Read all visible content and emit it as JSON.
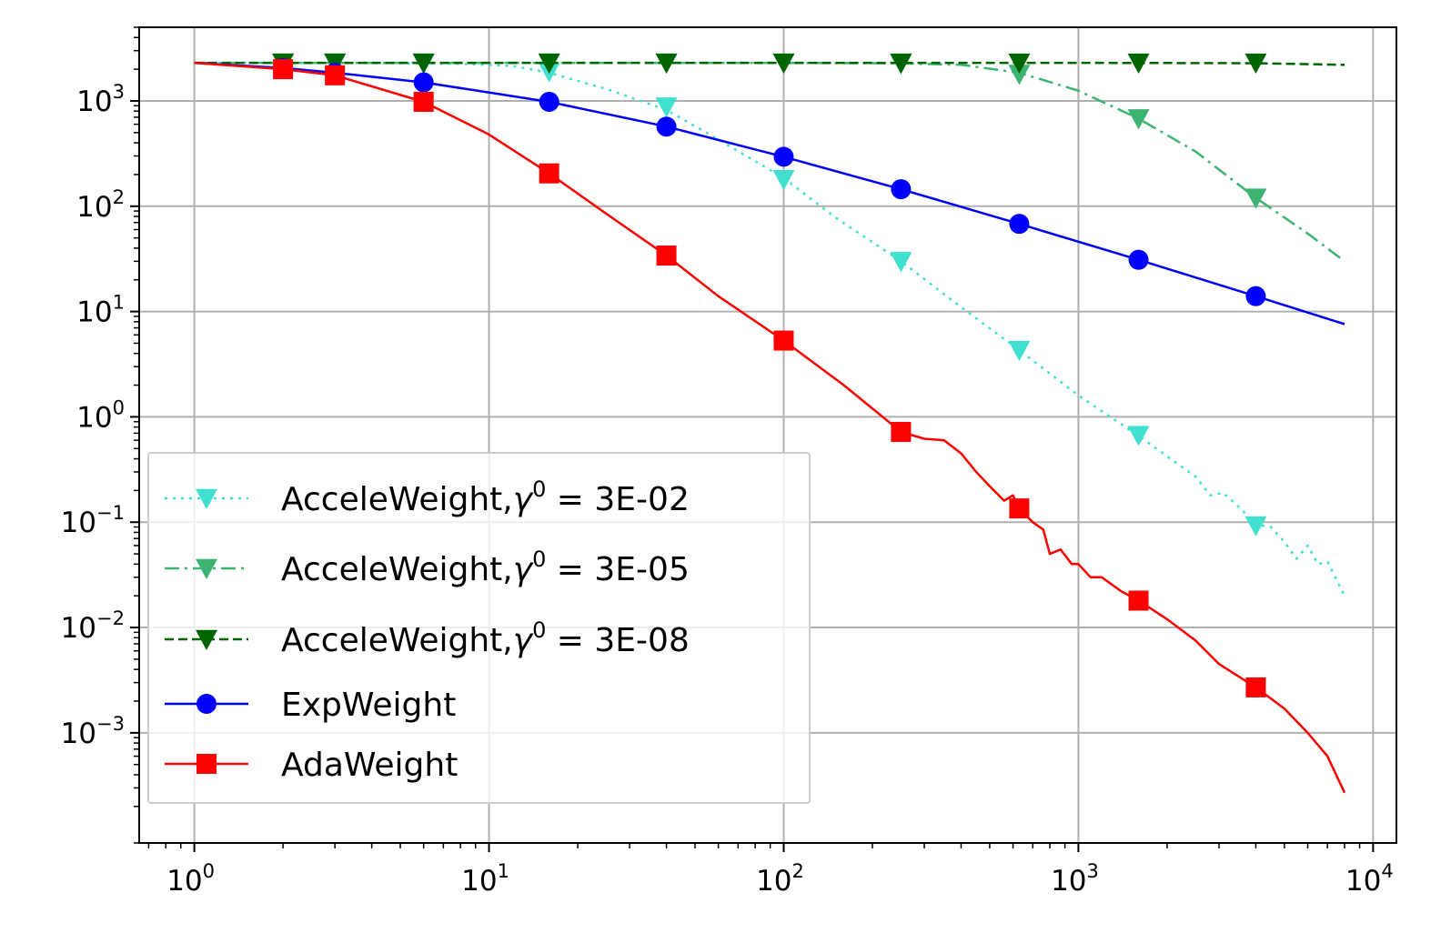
{
  "chart_data": {
    "type": "line",
    "xscale": "log",
    "yscale": "log",
    "xlim": [
      0.65,
      12000
    ],
    "ylim": [
      9e-05,
      5000
    ],
    "grid": true,
    "legend_position": "lower-left",
    "x_tick_labels": [
      {
        "value": 1,
        "base": "10",
        "exp": "0"
      },
      {
        "value": 10,
        "base": "10",
        "exp": "1"
      },
      {
        "value": 100,
        "base": "10",
        "exp": "2"
      },
      {
        "value": 1000,
        "base": "10",
        "exp": "3"
      },
      {
        "value": 10000,
        "base": "10",
        "exp": "4"
      }
    ],
    "y_tick_labels": [
      {
        "value": 1000,
        "base": "10",
        "exp": "3"
      },
      {
        "value": 100,
        "base": "10",
        "exp": "2"
      },
      {
        "value": 10,
        "base": "10",
        "exp": "1"
      },
      {
        "value": 1,
        "base": "10",
        "exp": "0"
      },
      {
        "value": 0.1,
        "base": "10",
        "exp": "−1"
      },
      {
        "value": 0.01,
        "base": "10",
        "exp": "−2"
      },
      {
        "value": 0.001,
        "base": "10",
        "exp": "−3"
      }
    ],
    "series": [
      {
        "name": "AcceleWeight, γ0 = 3E-02",
        "legend_prefix": "AcceleWeight,",
        "legend_gamma": "γ",
        "legend_sup": "0",
        "legend_suffix": " = 3E-02",
        "color": "#40e0d0",
        "dash": "3,6",
        "marker": "triangle-down",
        "line": [
          [
            1,
            2300
          ],
          [
            4,
            2290
          ],
          [
            8,
            2250
          ],
          [
            12,
            2150
          ],
          [
            16,
            1850
          ],
          [
            25,
            1300
          ],
          [
            40,
            820
          ],
          [
            60,
            430
          ],
          [
            100,
            185
          ],
          [
            150,
            78
          ],
          [
            250,
            30
          ],
          [
            400,
            11
          ],
          [
            630,
            4.3
          ],
          [
            1000,
            1.6
          ],
          [
            1600,
            0.66
          ],
          [
            2500,
            0.27
          ],
          [
            2800,
            0.18
          ],
          [
            3100,
            0.19
          ],
          [
            3500,
            0.14
          ],
          [
            4000,
            0.095
          ],
          [
            4500,
            0.09
          ],
          [
            5000,
            0.065
          ],
          [
            5500,
            0.045
          ],
          [
            6000,
            0.06
          ],
          [
            6500,
            0.04
          ],
          [
            7000,
            0.042
          ],
          [
            8000,
            0.02
          ]
        ],
        "markers": [
          [
            2,
            2300
          ],
          [
            3,
            2300
          ],
          [
            6,
            2290
          ],
          [
            16,
            1900
          ],
          [
            40,
            880
          ],
          [
            100,
            180
          ],
          [
            250,
            30
          ],
          [
            630,
            4.3
          ],
          [
            1600,
            0.67
          ],
          [
            4000,
            0.093
          ]
        ]
      },
      {
        "name": "AcceleWeight, γ0 = 3E-05",
        "legend_prefix": "AcceleWeight,",
        "legend_gamma": "γ",
        "legend_sup": "0",
        "legend_suffix": " = 3E-05",
        "color": "#3cb371",
        "dash": "16,6,3,6",
        "marker": "triangle-down",
        "line": [
          [
            1,
            2300
          ],
          [
            100,
            2300
          ],
          [
            250,
            2270
          ],
          [
            400,
            2200
          ],
          [
            630,
            1850
          ],
          [
            1000,
            1250
          ],
          [
            1600,
            680
          ],
          [
            2500,
            330
          ],
          [
            4000,
            120
          ],
          [
            6000,
            55
          ],
          [
            8000,
            30
          ]
        ],
        "markers": [
          [
            2,
            2300
          ],
          [
            3,
            2300
          ],
          [
            6,
            2300
          ],
          [
            16,
            2300
          ],
          [
            40,
            2300
          ],
          [
            100,
            2300
          ],
          [
            250,
            2270
          ],
          [
            630,
            1800
          ],
          [
            1600,
            680
          ],
          [
            4000,
            120
          ]
        ]
      },
      {
        "name": "AcceleWeight, γ0 = 3E-08",
        "legend_prefix": "AcceleWeight,",
        "legend_gamma": "γ",
        "legend_sup": "0",
        "legend_suffix": " = 3E-08",
        "color": "#006400",
        "dash": "10,5",
        "marker": "triangle-down",
        "line": [
          [
            1,
            2300
          ],
          [
            1000,
            2300
          ],
          [
            4000,
            2280
          ],
          [
            8000,
            2200
          ]
        ],
        "markers": [
          [
            2,
            2300
          ],
          [
            3,
            2300
          ],
          [
            6,
            2300
          ],
          [
            16,
            2300
          ],
          [
            40,
            2300
          ],
          [
            100,
            2300
          ],
          [
            250,
            2300
          ],
          [
            630,
            2300
          ],
          [
            1600,
            2300
          ],
          [
            4000,
            2300
          ]
        ]
      },
      {
        "name": "ExpWeight",
        "legend_prefix": "ExpWeight",
        "color": "#0000ff",
        "dash": "",
        "marker": "circle",
        "line": [
          [
            1,
            2300
          ],
          [
            2,
            2050
          ],
          [
            3,
            1850
          ],
          [
            6,
            1500
          ],
          [
            16,
            980
          ],
          [
            40,
            570
          ],
          [
            100,
            295
          ],
          [
            250,
            145
          ],
          [
            630,
            68
          ],
          [
            1600,
            31
          ],
          [
            4000,
            14
          ],
          [
            8000,
            7.6
          ]
        ],
        "markers": [
          [
            2,
            2050
          ],
          [
            3,
            1850
          ],
          [
            6,
            1500
          ],
          [
            16,
            980
          ],
          [
            40,
            570
          ],
          [
            100,
            295
          ],
          [
            250,
            145
          ],
          [
            630,
            68
          ],
          [
            1600,
            31
          ],
          [
            4000,
            14
          ]
        ]
      },
      {
        "name": "AdaWeight",
        "legend_prefix": "AdaWeight",
        "color": "#ff0000",
        "dash": "",
        "marker": "square",
        "line": [
          [
            1,
            2300
          ],
          [
            2,
            2000
          ],
          [
            3,
            1750
          ],
          [
            6,
            980
          ],
          [
            10,
            480
          ],
          [
            16,
            205
          ],
          [
            25,
            85
          ],
          [
            40,
            34
          ],
          [
            60,
            14
          ],
          [
            100,
            5.3
          ],
          [
            160,
            2.0
          ],
          [
            250,
            0.72
          ],
          [
            300,
            0.62
          ],
          [
            350,
            0.6
          ],
          [
            400,
            0.45
          ],
          [
            450,
            0.3
          ],
          [
            500,
            0.22
          ],
          [
            560,
            0.16
          ],
          [
            600,
            0.18
          ],
          [
            630,
            0.135
          ],
          [
            700,
            0.1
          ],
          [
            760,
            0.085
          ],
          [
            800,
            0.05
          ],
          [
            870,
            0.055
          ],
          [
            950,
            0.04
          ],
          [
            1000,
            0.04
          ],
          [
            1100,
            0.03
          ],
          [
            1200,
            0.03
          ],
          [
            1400,
            0.022
          ],
          [
            1600,
            0.018
          ],
          [
            2000,
            0.012
          ],
          [
            2500,
            0.0075
          ],
          [
            3000,
            0.0045
          ],
          [
            4000,
            0.0027
          ],
          [
            5000,
            0.0017
          ],
          [
            6000,
            0.001
          ],
          [
            7000,
            0.0006
          ],
          [
            8000,
            0.00027
          ]
        ],
        "markers": [
          [
            2,
            2000
          ],
          [
            3,
            1750
          ],
          [
            6,
            980
          ],
          [
            16,
            205
          ],
          [
            40,
            34
          ],
          [
            100,
            5.3
          ],
          [
            250,
            0.72
          ],
          [
            630,
            0.135
          ],
          [
            1600,
            0.018
          ],
          [
            4000,
            0.0027
          ]
        ]
      }
    ]
  }
}
